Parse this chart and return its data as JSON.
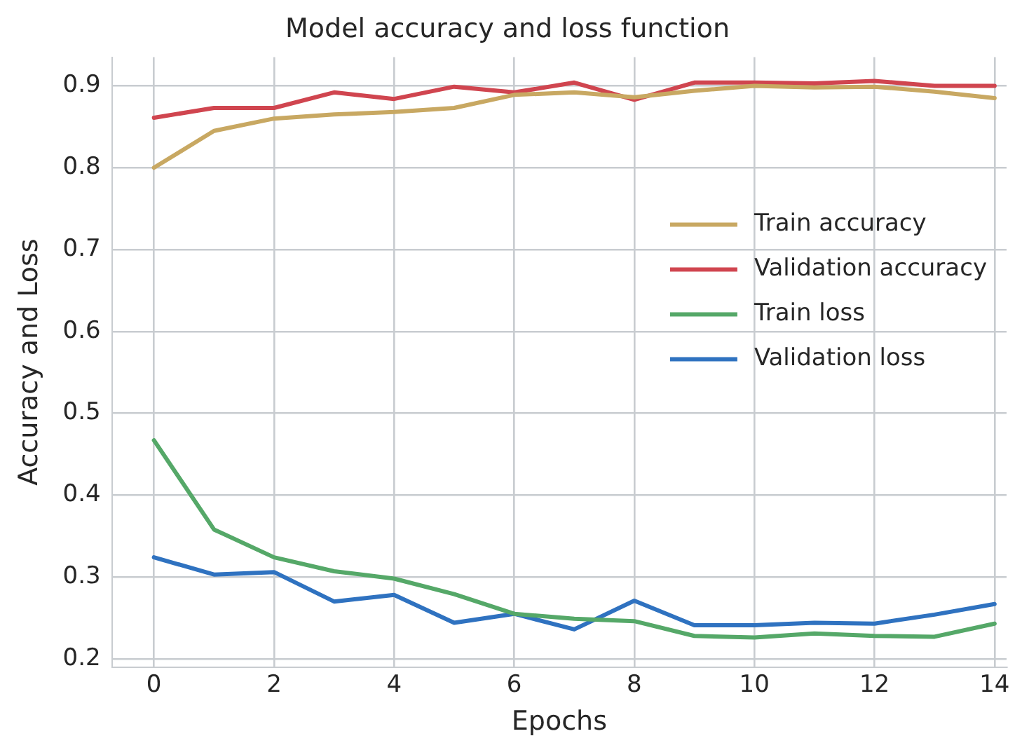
{
  "chart_data": {
    "type": "line",
    "title": "Model accuracy and loss function",
    "xlabel": "Epochs",
    "ylabel": "Accuracy and Loss",
    "x": [
      0,
      1,
      2,
      3,
      4,
      5,
      6,
      7,
      8,
      9,
      10,
      11,
      12,
      13,
      14
    ],
    "series": [
      {
        "name": "Train accuracy",
        "color": "#c8a862",
        "values": [
          0.8,
          0.845,
          0.86,
          0.865,
          0.868,
          0.873,
          0.889,
          0.892,
          0.886,
          0.894,
          0.9,
          0.898,
          0.899,
          0.893,
          0.885
        ]
      },
      {
        "name": "Validation accuracy",
        "color": "#d0454f",
        "values": [
          0.861,
          0.873,
          0.873,
          0.892,
          0.884,
          0.899,
          0.892,
          0.904,
          0.883,
          0.904,
          0.904,
          0.903,
          0.906,
          0.9,
          0.9
        ]
      },
      {
        "name": "Train loss",
        "color": "#55a868",
        "values": [
          0.467,
          0.358,
          0.324,
          0.307,
          0.298,
          0.279,
          0.255,
          0.249,
          0.246,
          0.228,
          0.226,
          0.231,
          0.228,
          0.227,
          0.243
        ]
      },
      {
        "name": "Validation loss",
        "color": "#2f72c0",
        "values": [
          0.324,
          0.303,
          0.306,
          0.27,
          0.278,
          0.244,
          0.255,
          0.236,
          0.271,
          0.241,
          0.241,
          0.244,
          0.243,
          0.254,
          0.267
        ]
      }
    ],
    "xlim": [
      -0.7,
      14.2
    ],
    "xticks": [
      0,
      2,
      4,
      6,
      8,
      10,
      12,
      14
    ],
    "ylim": [
      0.19,
      0.935
    ],
    "yticks": [
      0.2,
      0.3,
      0.4,
      0.5,
      0.6,
      0.7,
      0.8,
      0.9
    ],
    "grid": true,
    "legend": "right",
    "marker": "none",
    "line_style": "solid"
  }
}
